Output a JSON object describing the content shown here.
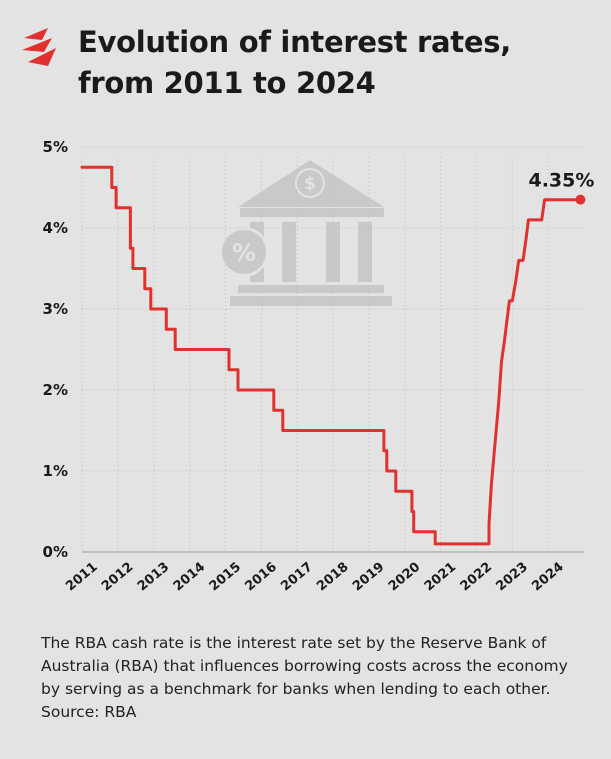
{
  "title": [
    "Evolution of interest rates,",
    "from 2011 to 2024"
  ],
  "caption": [
    "The RBA cash rate is the interest rate set by the Reserve Bank of",
    "Australia (RBA) that influences borrowing costs across the economy",
    "by serving as a benchmark for banks when lending to each other.",
    "Source: RBA"
  ],
  "icons": {
    "logo": "sbs-logo-icon",
    "watermark": "bank-dollar-percent-icon"
  },
  "colors": {
    "line": "#e0312f",
    "background": "#e3e3e3",
    "grid": "#bdbdbd",
    "watermark": "#c9c9c9"
  },
  "chart_data": {
    "type": "line",
    "title": "Evolution of interest rates, from 2011 to 2024",
    "xlabel": "",
    "ylabel": "",
    "ylim": [
      0,
      5
    ],
    "xlim": [
      2011,
      2025
    ],
    "x_ticks": [
      "2011",
      "2012",
      "2013",
      "2014",
      "2015",
      "2016",
      "2017",
      "2018",
      "2019",
      "2020",
      "2021",
      "2022",
      "2023",
      "2024"
    ],
    "y_ticks": [
      "0%",
      "1%",
      "2%",
      "3%",
      "4%",
      "5%"
    ],
    "grid": true,
    "annotations": [
      {
        "text": "4.35%",
        "x": 2024.9,
        "y": 4.35
      }
    ],
    "series": [
      {
        "values": [
          [
            2011.0,
            4.75
          ],
          [
            2011.83,
            4.75
          ],
          [
            2011.83,
            4.5
          ],
          [
            2011.95,
            4.5
          ],
          [
            2011.95,
            4.25
          ],
          [
            2012.35,
            4.25
          ],
          [
            2012.35,
            3.75
          ],
          [
            2012.42,
            3.75
          ],
          [
            2012.42,
            3.5
          ],
          [
            2012.75,
            3.5
          ],
          [
            2012.75,
            3.25
          ],
          [
            2012.92,
            3.25
          ],
          [
            2012.92,
            3.0
          ],
          [
            2013.35,
            3.0
          ],
          [
            2013.35,
            2.75
          ],
          [
            2013.6,
            2.75
          ],
          [
            2013.6,
            2.5
          ],
          [
            2015.1,
            2.5
          ],
          [
            2015.1,
            2.25
          ],
          [
            2015.35,
            2.25
          ],
          [
            2015.35,
            2.0
          ],
          [
            2016.35,
            2.0
          ],
          [
            2016.35,
            1.75
          ],
          [
            2016.6,
            1.75
          ],
          [
            2016.6,
            1.5
          ],
          [
            2019.42,
            1.5
          ],
          [
            2019.42,
            1.25
          ],
          [
            2019.5,
            1.25
          ],
          [
            2019.5,
            1.0
          ],
          [
            2019.75,
            1.0
          ],
          [
            2019.75,
            0.75
          ],
          [
            2020.2,
            0.75
          ],
          [
            2020.2,
            0.5
          ],
          [
            2020.25,
            0.5
          ],
          [
            2020.25,
            0.25
          ],
          [
            2020.85,
            0.25
          ],
          [
            2020.85,
            0.1
          ],
          [
            2022.35,
            0.1
          ],
          [
            2022.35,
            0.35
          ],
          [
            2022.42,
            0.85
          ],
          [
            2022.52,
            1.35
          ],
          [
            2022.62,
            1.85
          ],
          [
            2022.7,
            2.35
          ],
          [
            2022.78,
            2.6
          ],
          [
            2022.85,
            2.85
          ],
          [
            2022.92,
            3.1
          ],
          [
            2023.0,
            3.1
          ],
          [
            2023.1,
            3.35
          ],
          [
            2023.18,
            3.6
          ],
          [
            2023.3,
            3.6
          ],
          [
            2023.38,
            3.85
          ],
          [
            2023.45,
            4.1
          ],
          [
            2023.82,
            4.1
          ],
          [
            2023.9,
            4.35
          ],
          [
            2024.9,
            4.35
          ]
        ]
      }
    ]
  }
}
